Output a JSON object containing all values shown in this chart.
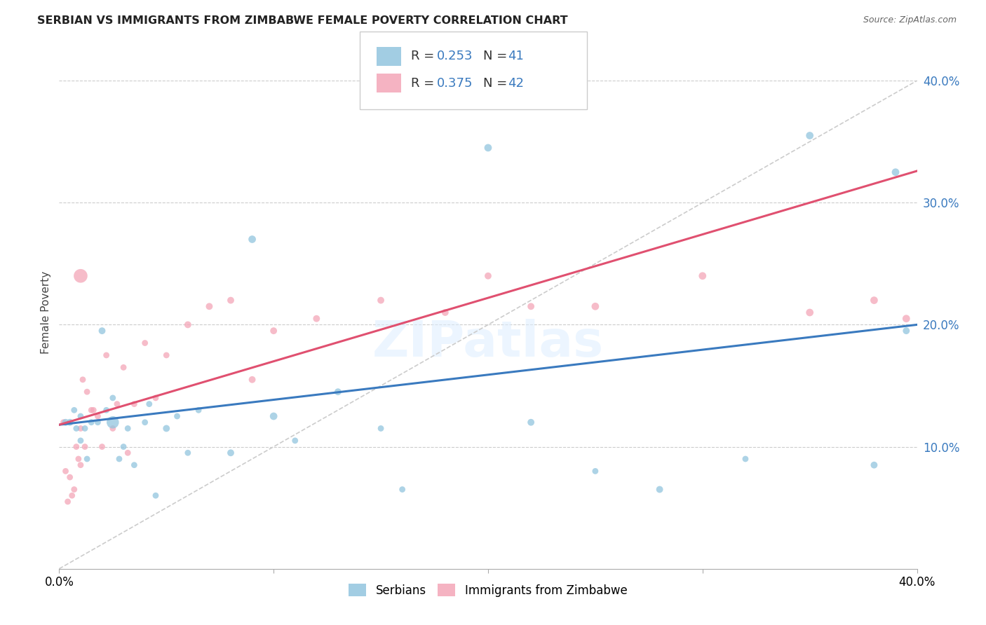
{
  "title": "SERBIAN VS IMMIGRANTS FROM ZIMBABWE FEMALE POVERTY CORRELATION CHART",
  "source": "Source: ZipAtlas.com",
  "ylabel": "Female Poverty",
  "xlim": [
    0.0,
    0.4
  ],
  "ylim": [
    0.0,
    0.42
  ],
  "right_yticks": [
    0.1,
    0.2,
    0.3,
    0.4
  ],
  "right_yticklabels": [
    "10.0%",
    "20.0%",
    "30.0%",
    "40.0%"
  ],
  "serbian_color": "#92c5de",
  "zimbabwe_color": "#f4a6b8",
  "serbian_line_color": "#3a7abf",
  "zimbabwe_line_color": "#e05070",
  "dashed_line_color": "#cccccc",
  "serbian_R": 0.253,
  "serbian_N": 41,
  "zimbabwe_R": 0.375,
  "zimbabwe_N": 42,
  "serbian_intercept": 0.118,
  "serbian_slope": 0.205,
  "zimbabwe_intercept": 0.118,
  "zimbabwe_slope": 0.52,
  "serbian_x": [
    0.003,
    0.005,
    0.007,
    0.008,
    0.01,
    0.01,
    0.012,
    0.013,
    0.015,
    0.018,
    0.02,
    0.022,
    0.025,
    0.025,
    0.028,
    0.03,
    0.032,
    0.035,
    0.04,
    0.042,
    0.045,
    0.05,
    0.055,
    0.06,
    0.065,
    0.08,
    0.09,
    0.1,
    0.11,
    0.13,
    0.15,
    0.16,
    0.2,
    0.22,
    0.25,
    0.28,
    0.32,
    0.35,
    0.38,
    0.39,
    0.395
  ],
  "serbian_y": [
    0.12,
    0.12,
    0.13,
    0.115,
    0.125,
    0.105,
    0.115,
    0.09,
    0.12,
    0.12,
    0.195,
    0.13,
    0.14,
    0.12,
    0.09,
    0.1,
    0.115,
    0.085,
    0.12,
    0.135,
    0.06,
    0.115,
    0.125,
    0.095,
    0.13,
    0.095,
    0.27,
    0.125,
    0.105,
    0.145,
    0.115,
    0.065,
    0.345,
    0.12,
    0.08,
    0.065,
    0.09,
    0.355,
    0.085,
    0.325,
    0.195
  ],
  "serbian_sizes": [
    50,
    50,
    40,
    40,
    40,
    40,
    40,
    40,
    40,
    40,
    50,
    40,
    40,
    160,
    40,
    40,
    40,
    40,
    40,
    40,
    40,
    50,
    40,
    40,
    40,
    50,
    60,
    60,
    40,
    50,
    40,
    40,
    60,
    50,
    40,
    50,
    40,
    60,
    50,
    60,
    50
  ],
  "zimbabwe_x": [
    0.002,
    0.003,
    0.004,
    0.005,
    0.006,
    0.007,
    0.008,
    0.009,
    0.01,
    0.01,
    0.011,
    0.012,
    0.013,
    0.015,
    0.016,
    0.018,
    0.02,
    0.022,
    0.025,
    0.027,
    0.03,
    0.032,
    0.035,
    0.04,
    0.045,
    0.05,
    0.06,
    0.07,
    0.08,
    0.09,
    0.1,
    0.12,
    0.15,
    0.18,
    0.2,
    0.22,
    0.25,
    0.3,
    0.35,
    0.38,
    0.395,
    0.01
  ],
  "zimbabwe_y": [
    0.12,
    0.08,
    0.055,
    0.075,
    0.06,
    0.065,
    0.1,
    0.09,
    0.085,
    0.115,
    0.155,
    0.1,
    0.145,
    0.13,
    0.13,
    0.125,
    0.1,
    0.175,
    0.115,
    0.135,
    0.165,
    0.095,
    0.135,
    0.185,
    0.14,
    0.175,
    0.2,
    0.215,
    0.22,
    0.155,
    0.195,
    0.205,
    0.22,
    0.21,
    0.24,
    0.215,
    0.215,
    0.24,
    0.21,
    0.22,
    0.205,
    0.24
  ],
  "zimbabwe_sizes": [
    40,
    40,
    40,
    40,
    40,
    40,
    40,
    40,
    40,
    40,
    40,
    40,
    40,
    40,
    40,
    40,
    40,
    40,
    40,
    40,
    40,
    40,
    40,
    40,
    40,
    40,
    50,
    50,
    50,
    50,
    50,
    50,
    50,
    50,
    50,
    50,
    60,
    60,
    60,
    60,
    60,
    200
  ]
}
